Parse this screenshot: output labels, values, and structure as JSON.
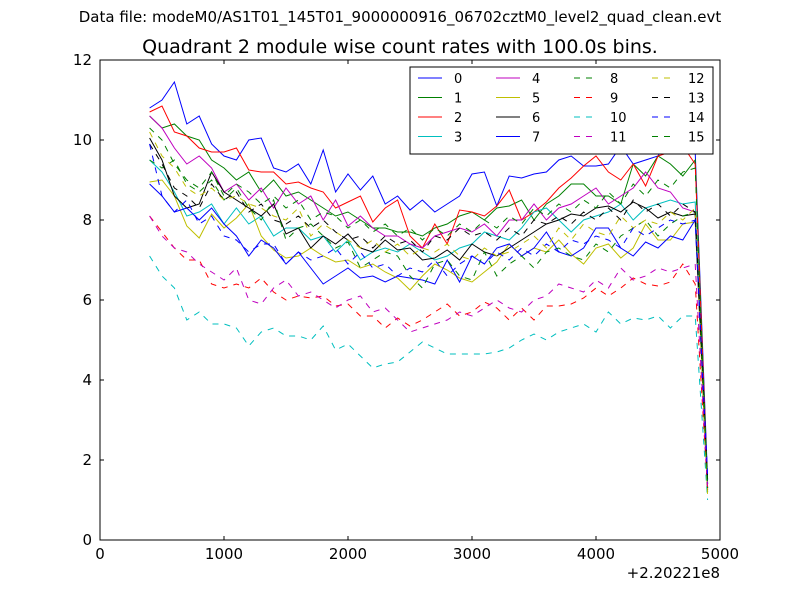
{
  "figure": {
    "suptitle": "Data file: modeM0/AS1T01_145T01_9000000916_06702cztM0_level2_quad_clean.evt"
  },
  "chart_data": {
    "type": "line",
    "title": "Quadrant 2 module wise count rates with 100.0s bins.",
    "xlabel": "",
    "ylabel": "",
    "xlim": [
      0,
      5000
    ],
    "ylim": [
      0,
      12
    ],
    "xticks": [
      0,
      1000,
      2000,
      3000,
      4000,
      5000
    ],
    "yticks": [
      0,
      2,
      4,
      6,
      8,
      10,
      12
    ],
    "x_offset_label": "+2.20221e8",
    "legend_position": "top-right",
    "legend_columns": 4,
    "x": [
      400,
      500,
      600,
      700,
      800,
      900,
      1000,
      1100,
      1200,
      1300,
      1400,
      1500,
      1600,
      1700,
      1800,
      1900,
      2000,
      2100,
      2200,
      2300,
      2400,
      2500,
      2600,
      2700,
      2800,
      2900,
      3000,
      3100,
      3200,
      3300,
      3400,
      3500,
      3600,
      3700,
      3800,
      3900,
      4000,
      4100,
      4200,
      4300,
      4400,
      4500,
      4600,
      4700,
      4800,
      4900
    ],
    "series": [
      {
        "name": "0",
        "color": "#0000ff",
        "dash": "solid",
        "values": [
          10.8,
          11.0,
          11.45,
          10.4,
          10.6,
          9.9,
          9.6,
          9.5,
          10.0,
          10.05,
          9.3,
          9.2,
          9.4,
          8.9,
          9.75,
          8.7,
          9.15,
          8.75,
          9.1,
          8.4,
          8.6,
          8.25,
          8.5,
          8.2,
          8.4,
          8.6,
          9.15,
          9.2,
          8.35,
          9.1,
          9.05,
          9.15,
          9.2,
          9.5,
          9.6,
          9.35,
          9.35,
          9.4,
          9.85,
          9.4,
          9.5,
          9.6,
          10.1,
          10.2,
          9.7,
          1.5
        ]
      },
      {
        "name": "1",
        "color": "#008000",
        "dash": "solid",
        "values": [
          10.6,
          10.3,
          10.4,
          10.1,
          10.0,
          9.5,
          9.3,
          9.0,
          9.2,
          8.7,
          9.0,
          8.6,
          8.7,
          8.5,
          8.3,
          8.1,
          8.2,
          8.0,
          7.8,
          7.8,
          7.7,
          7.7,
          7.6,
          7.8,
          7.9,
          8.1,
          8.2,
          8.0,
          8.3,
          8.35,
          8.5,
          8.0,
          8.4,
          8.6,
          8.9,
          8.9,
          8.6,
          8.6,
          8.4,
          9.4,
          9.1,
          9.6,
          9.4,
          9.1,
          9.5,
          1.3
        ]
      },
      {
        "name": "2",
        "color": "#ff0000",
        "dash": "solid",
        "values": [
          10.7,
          10.85,
          10.2,
          10.1,
          9.8,
          9.7,
          9.7,
          9.8,
          9.25,
          9.2,
          9.2,
          8.9,
          8.95,
          8.8,
          8.7,
          8.3,
          8.45,
          8.6,
          7.95,
          8.3,
          8.5,
          7.6,
          7.3,
          7.9,
          7.4,
          8.25,
          8.2,
          8.1,
          8.35,
          8.75,
          8.0,
          8.2,
          8.45,
          8.8,
          9.05,
          9.35,
          9.6,
          9.2,
          9.0,
          9.4,
          8.85,
          9.6,
          9.7,
          9.85,
          9.4,
          1.4
        ]
      },
      {
        "name": "3",
        "color": "#00bfbf",
        "dash": "solid",
        "values": [
          9.5,
          9.2,
          8.7,
          8.1,
          8.2,
          8.4,
          7.9,
          8.3,
          7.9,
          8.1,
          7.6,
          7.8,
          7.8,
          7.5,
          7.6,
          7.2,
          7.5,
          7.0,
          7.2,
          7.3,
          7.2,
          7.4,
          7.2,
          7.0,
          7.1,
          7.3,
          7.4,
          7.7,
          7.6,
          7.5,
          7.8,
          8.2,
          8.3,
          8.0,
          7.7,
          8.0,
          8.1,
          8.2,
          8.4,
          8.0,
          8.3,
          8.4,
          8.5,
          8.4,
          8.45,
          1.2
        ]
      },
      {
        "name": "4",
        "color": "#bf00bf",
        "dash": "solid",
        "values": [
          10.6,
          10.3,
          9.8,
          9.4,
          9.6,
          9.3,
          8.7,
          8.9,
          8.5,
          8.8,
          8.3,
          8.8,
          8.4,
          8.6,
          8.0,
          8.5,
          7.85,
          8.1,
          7.8,
          7.6,
          7.6,
          7.4,
          7.3,
          7.6,
          7.7,
          7.8,
          7.7,
          7.9,
          7.6,
          8.0,
          8.0,
          8.4,
          8.0,
          8.3,
          8.4,
          8.6,
          8.8,
          8.4,
          8.6,
          8.8,
          9.2,
          8.8,
          8.7,
          8.3,
          8.2,
          1.3
        ]
      },
      {
        "name": "5",
        "color": "#bfbf00",
        "dash": "solid",
        "values": [
          8.95,
          9.0,
          8.6,
          7.85,
          7.55,
          8.15,
          7.8,
          8.05,
          8.4,
          7.6,
          7.25,
          7.05,
          7.1,
          7.3,
          7.1,
          6.95,
          7.0,
          6.8,
          6.9,
          6.7,
          6.55,
          6.25,
          6.6,
          6.9,
          6.75,
          6.55,
          6.45,
          6.7,
          6.95,
          7.4,
          7.1,
          7.3,
          7.2,
          7.5,
          7.15,
          6.9,
          7.3,
          7.4,
          7.05,
          7.3,
          7.9,
          7.5,
          7.5,
          7.9,
          7.95,
          1.2
        ]
      },
      {
        "name": "6",
        "color": "#000000",
        "dash": "solid",
        "values": [
          10.05,
          9.5,
          8.6,
          8.3,
          8.4,
          9.2,
          8.7,
          8.5,
          8.3,
          8.1,
          8.4,
          7.65,
          7.8,
          7.3,
          7.6,
          7.4,
          7.65,
          7.3,
          7.2,
          7.5,
          7.25,
          7.3,
          7.0,
          7.05,
          7.25,
          7.0,
          7.4,
          7.2,
          7.1,
          7.3,
          7.5,
          7.7,
          7.9,
          8.0,
          8.15,
          8.1,
          8.3,
          8.35,
          8.2,
          8.45,
          8.3,
          8.05,
          8.2,
          8.1,
          8.15,
          1.25
        ]
      },
      {
        "name": "7",
        "color": "#0000ff",
        "dash": "solid",
        "values": [
          8.9,
          8.6,
          8.2,
          8.3,
          8.0,
          8.3,
          7.9,
          7.6,
          7.1,
          7.5,
          7.3,
          6.9,
          7.2,
          6.8,
          6.4,
          6.6,
          6.8,
          6.55,
          6.6,
          6.45,
          6.6,
          6.55,
          6.5,
          6.4,
          7.0,
          6.45,
          7.1,
          6.9,
          7.3,
          7.4,
          7.1,
          7.3,
          7.7,
          7.2,
          7.1,
          7.3,
          7.8,
          7.8,
          7.3,
          7.1,
          7.45,
          7.3,
          7.6,
          7.5,
          8.0,
          1.4
        ]
      },
      {
        "name": "8",
        "color": "#008000",
        "dash": "dashed",
        "values": [
          9.5,
          9.3,
          9.5,
          8.9,
          8.7,
          9.0,
          8.5,
          8.8,
          8.3,
          8.0,
          8.5,
          7.5,
          7.8,
          7.9,
          7.6,
          7.3,
          7.45,
          6.8,
          7.0,
          7.2,
          7.1,
          6.6,
          6.3,
          6.9,
          7.0,
          6.6,
          6.5,
          7.2,
          6.6,
          6.9,
          7.1,
          6.8,
          7.2,
          7.3,
          7.1,
          7.0,
          7.4,
          7.2,
          7.6,
          7.8,
          8.0,
          7.6,
          7.9,
          8.1,
          8.2,
          1.05
        ]
      },
      {
        "name": "9",
        "color": "#ff0000",
        "dash": "dashed",
        "values": [
          8.1,
          7.7,
          7.3,
          7.0,
          7.0,
          6.4,
          6.3,
          6.4,
          6.3,
          6.55,
          6.2,
          6.0,
          6.1,
          6.05,
          6.1,
          5.85,
          5.9,
          5.6,
          5.6,
          5.3,
          5.55,
          5.35,
          5.5,
          5.7,
          5.9,
          5.6,
          5.7,
          5.95,
          5.8,
          5.5,
          5.8,
          5.5,
          5.85,
          5.85,
          5.9,
          6.05,
          6.3,
          6.1,
          6.3,
          6.55,
          6.4,
          6.35,
          6.45,
          6.9,
          6.4,
          1.25
        ]
      },
      {
        "name": "10",
        "color": "#00bfbf",
        "dash": "dashed",
        "values": [
          7.1,
          6.6,
          6.3,
          5.5,
          5.7,
          5.4,
          5.4,
          5.3,
          4.85,
          5.2,
          5.3,
          5.1,
          5.1,
          5.0,
          5.35,
          4.75,
          4.9,
          4.6,
          4.3,
          4.4,
          4.45,
          4.7,
          4.95,
          4.8,
          4.65,
          4.65,
          4.65,
          4.65,
          4.7,
          4.8,
          5.0,
          5.15,
          5.0,
          5.2,
          5.3,
          5.4,
          5.2,
          5.7,
          5.4,
          5.55,
          5.5,
          5.6,
          5.3,
          5.6,
          5.6,
          1.0
        ]
      },
      {
        "name": "11",
        "color": "#bf00bf",
        "dash": "dashed",
        "values": [
          8.1,
          7.6,
          7.3,
          7.2,
          6.9,
          6.7,
          6.5,
          6.8,
          6.0,
          5.9,
          6.3,
          6.5,
          6.1,
          6.2,
          6.0,
          5.8,
          6.0,
          6.1,
          5.7,
          5.8,
          5.5,
          5.2,
          5.3,
          5.4,
          5.5,
          5.7,
          5.6,
          5.8,
          6.0,
          5.8,
          5.7,
          6.0,
          6.1,
          6.4,
          6.3,
          6.2,
          6.5,
          6.3,
          6.8,
          6.5,
          6.6,
          6.8,
          6.7,
          6.8,
          6.9,
          1.3
        ]
      },
      {
        "name": "12",
        "color": "#bfbf00",
        "dash": "dashed",
        "values": [
          10.2,
          9.6,
          9.3,
          8.8,
          8.6,
          8.8,
          8.5,
          8.6,
          8.4,
          8.3,
          8.1,
          8.0,
          8.3,
          7.6,
          7.9,
          7.7,
          7.5,
          7.3,
          7.5,
          7.2,
          7.4,
          7.1,
          7.3,
          7.2,
          7.4,
          7.1,
          7.0,
          7.3,
          7.1,
          7.2,
          7.4,
          7.6,
          7.3,
          7.8,
          7.5,
          7.9,
          7.7,
          7.6,
          8.1,
          7.8,
          8.0,
          7.9,
          8.2,
          8.0,
          8.3,
          1.1
        ]
      },
      {
        "name": "13",
        "color": "#000000",
        "dash": "dashed",
        "values": [
          9.9,
          9.4,
          8.8,
          8.6,
          8.3,
          8.9,
          8.5,
          8.7,
          8.2,
          8.4,
          8.0,
          7.9,
          8.1,
          7.8,
          8.0,
          7.7,
          7.5,
          7.6,
          7.3,
          7.6,
          7.4,
          7.5,
          7.2,
          7.6,
          7.5,
          7.8,
          7.6,
          7.7,
          7.5,
          7.8,
          7.6,
          8.0,
          7.9,
          8.1,
          7.9,
          8.2,
          8.0,
          8.3,
          8.0,
          8.5,
          8.2,
          8.4,
          8.1,
          8.4,
          8.2,
          1.5
        ]
      },
      {
        "name": "14",
        "color": "#0000ff",
        "dash": "dashed",
        "values": [
          9.9,
          8.6,
          8.2,
          8.5,
          7.9,
          8.1,
          7.6,
          7.5,
          7.2,
          7.4,
          7.4,
          6.9,
          7.2,
          7.0,
          7.1,
          7.3,
          6.9,
          7.2,
          6.8,
          6.9,
          6.6,
          6.8,
          6.7,
          7.0,
          6.6,
          6.9,
          7.1,
          6.9,
          7.2,
          7.0,
          7.3,
          7.1,
          7.4,
          7.2,
          7.5,
          7.4,
          7.6,
          7.5,
          7.3,
          7.8,
          7.6,
          7.8,
          8.0,
          7.9,
          8.0,
          1.6
        ]
      },
      {
        "name": "15",
        "color": "#008000",
        "dash": "dashed",
        "values": [
          10.3,
          10.0,
          9.4,
          9.0,
          8.8,
          9.2,
          8.6,
          8.9,
          8.7,
          8.4,
          8.6,
          8.3,
          8.5,
          8.0,
          8.2,
          8.1,
          7.8,
          8.0,
          7.7,
          7.9,
          7.6,
          7.8,
          7.5,
          7.8,
          7.6,
          7.9,
          7.7,
          8.0,
          7.8,
          8.1,
          7.9,
          8.3,
          8.1,
          8.4,
          8.2,
          8.5,
          8.3,
          8.7,
          8.4,
          8.9,
          8.6,
          9.0,
          8.8,
          9.2,
          9.3,
          1.3
        ]
      }
    ]
  }
}
